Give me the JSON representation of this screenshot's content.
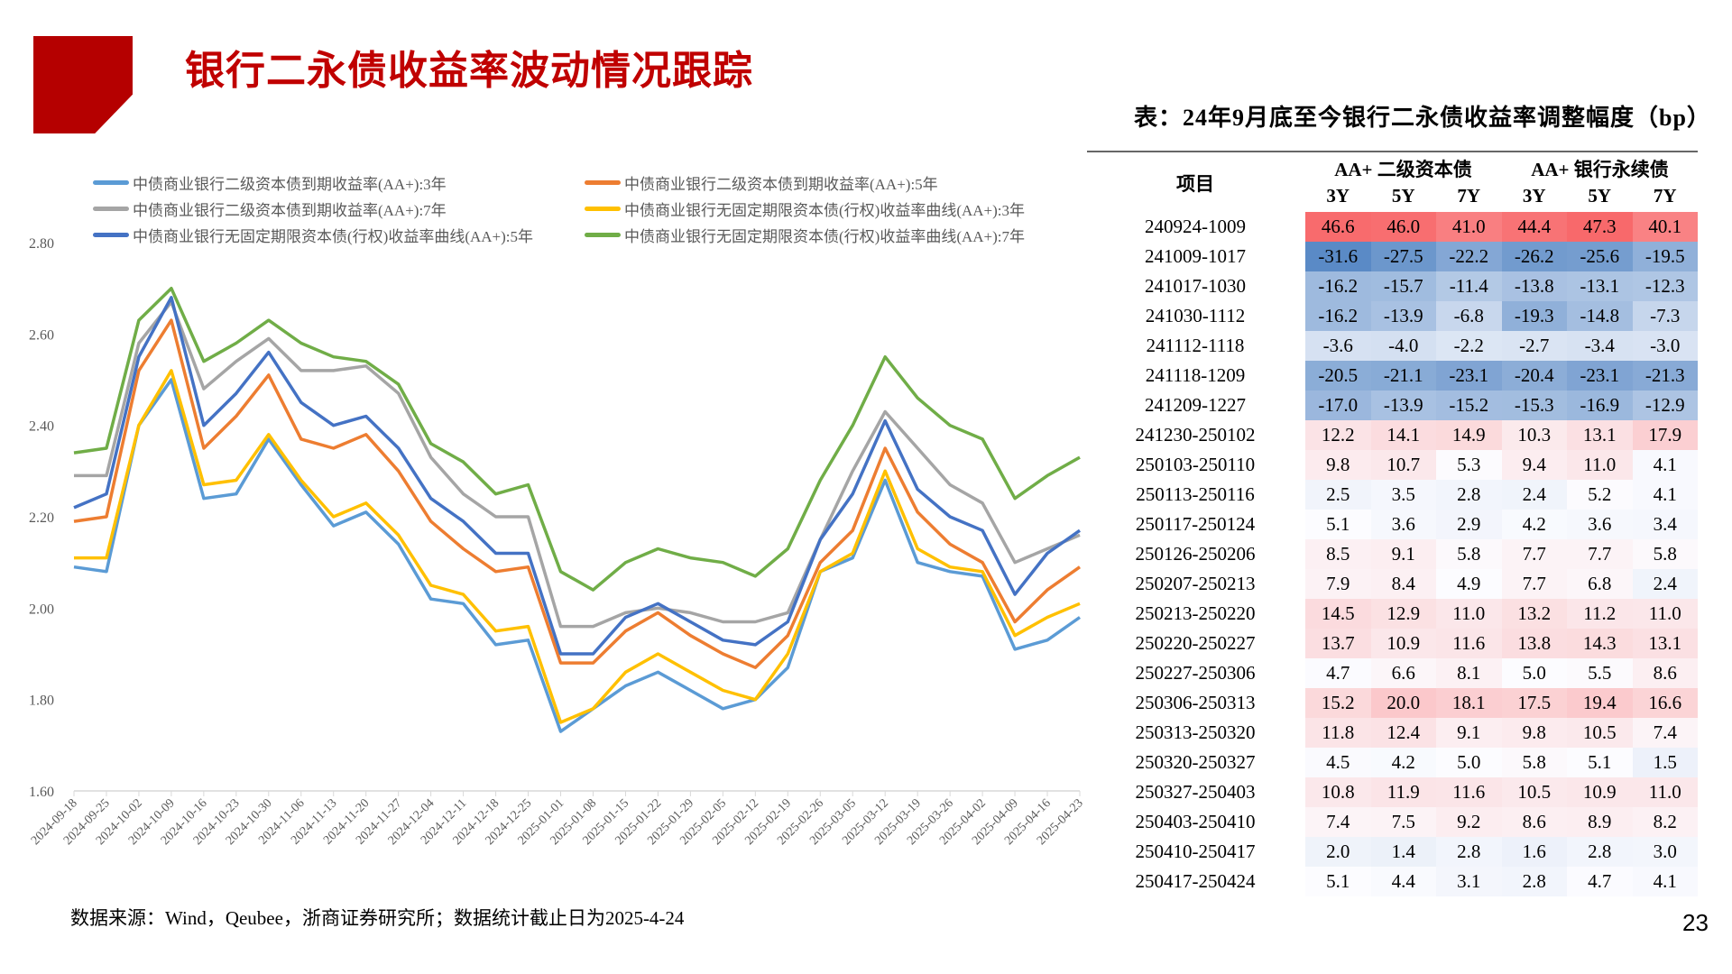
{
  "header": {
    "title": "银行二永债收益率波动情况跟踪"
  },
  "chart_data": {
    "type": "line",
    "title": "",
    "xlabel": "",
    "ylabel": "",
    "ylim": [
      1.6,
      2.8
    ],
    "yticks": [
      "1.60",
      "1.80",
      "2.00",
      "2.20",
      "2.40",
      "2.60",
      "2.80"
    ],
    "legend_position": "top",
    "x": [
      "2024-09-18",
      "2024-09-25",
      "2024-10-02",
      "2024-10-09",
      "2024-10-16",
      "2024-10-23",
      "2024-10-30",
      "2024-11-06",
      "2024-11-13",
      "2024-11-20",
      "2024-11-27",
      "2024-12-04",
      "2024-12-11",
      "2024-12-18",
      "2024-12-25",
      "2025-01-01",
      "2025-01-08",
      "2025-01-15",
      "2025-01-22",
      "2025-01-29",
      "2025-02-05",
      "2025-02-12",
      "2025-02-19",
      "2025-02-26",
      "2025-03-05",
      "2025-03-12",
      "2025-03-19",
      "2025-03-26",
      "2025-04-02",
      "2025-04-09",
      "2025-04-16",
      "2025-04-23"
    ],
    "series": [
      {
        "name": "中债商业银行二级资本债到期收益率(AA+):3年",
        "color": "#5b9bd5",
        "values": [
          2.09,
          2.08,
          2.4,
          2.5,
          2.24,
          2.25,
          2.37,
          2.27,
          2.18,
          2.21,
          2.14,
          2.02,
          2.01,
          1.92,
          1.93,
          1.73,
          1.78,
          1.83,
          1.86,
          1.82,
          1.78,
          1.8,
          1.87,
          2.08,
          2.11,
          2.28,
          2.1,
          2.08,
          2.07,
          1.91,
          1.93,
          1.98
        ]
      },
      {
        "name": "中债商业银行二级资本债到期收益率(AA+):5年",
        "color": "#ed7d31",
        "values": [
          2.19,
          2.2,
          2.52,
          2.63,
          2.35,
          2.42,
          2.51,
          2.37,
          2.35,
          2.38,
          2.3,
          2.19,
          2.13,
          2.08,
          2.09,
          1.88,
          1.88,
          1.95,
          1.99,
          1.94,
          1.9,
          1.87,
          1.94,
          2.1,
          2.17,
          2.35,
          2.21,
          2.14,
          2.1,
          1.97,
          2.04,
          2.09
        ]
      },
      {
        "name": "中债商业银行二级资本债到期收益率(AA+):7年",
        "color": "#a5a5a5",
        "values": [
          2.29,
          2.29,
          2.58,
          2.67,
          2.48,
          2.54,
          2.59,
          2.52,
          2.52,
          2.53,
          2.47,
          2.33,
          2.25,
          2.2,
          2.2,
          1.96,
          1.96,
          1.99,
          2.0,
          1.99,
          1.97,
          1.97,
          1.99,
          2.15,
          2.3,
          2.43,
          2.35,
          2.27,
          2.23,
          2.1,
          2.13,
          2.16
        ]
      },
      {
        "name": "中债商业银行无固定期限资本债(行权)收益率曲线(AA+):3年",
        "color": "#ffc000",
        "values": [
          2.11,
          2.11,
          2.4,
          2.52,
          2.27,
          2.28,
          2.38,
          2.28,
          2.2,
          2.23,
          2.16,
          2.05,
          2.03,
          1.95,
          1.96,
          1.75,
          1.78,
          1.86,
          1.9,
          1.86,
          1.82,
          1.8,
          1.9,
          2.08,
          2.12,
          2.3,
          2.13,
          2.09,
          2.08,
          1.94,
          1.98,
          2.01
        ]
      },
      {
        "name": "中债商业银行无固定期限资本债(行权)收益率曲线(AA+):5年",
        "color": "#4472c4",
        "values": [
          2.22,
          2.25,
          2.55,
          2.68,
          2.4,
          2.47,
          2.56,
          2.45,
          2.4,
          2.42,
          2.35,
          2.24,
          2.19,
          2.12,
          2.12,
          1.9,
          1.9,
          1.98,
          2.01,
          1.97,
          1.93,
          1.92,
          1.97,
          2.15,
          2.25,
          2.41,
          2.26,
          2.2,
          2.17,
          2.03,
          2.12,
          2.17
        ]
      },
      {
        "name": "中债商业银行无固定期限资本债(行权)收益率曲线(AA+):7年",
        "color": "#70ad47",
        "values": [
          2.34,
          2.35,
          2.63,
          2.7,
          2.54,
          2.58,
          2.63,
          2.58,
          2.55,
          2.54,
          2.49,
          2.36,
          2.32,
          2.25,
          2.27,
          2.08,
          2.04,
          2.1,
          2.13,
          2.11,
          2.1,
          2.07,
          2.13,
          2.28,
          2.4,
          2.55,
          2.46,
          2.4,
          2.37,
          2.24,
          2.29,
          2.33
        ]
      }
    ]
  },
  "table": {
    "title": "表：24年9月底至今银行二永债收益率调整幅度（bp）",
    "item_header": "项目",
    "group_headers": [
      "AA+ 二级资本债",
      "AA+ 银行永续债"
    ],
    "sub_headers": [
      "3Y",
      "5Y",
      "7Y",
      "3Y",
      "5Y",
      "7Y"
    ],
    "rows": [
      {
        "label": "240924-1009",
        "values": [
          "46.6",
          "46.0",
          "41.0",
          "44.4",
          "47.3",
          "40.1"
        ]
      },
      {
        "label": "241009-1017",
        "values": [
          "-31.6",
          "-27.5",
          "-22.2",
          "-26.2",
          "-25.6",
          "-19.5"
        ]
      },
      {
        "label": "241017-1030",
        "values": [
          "-16.2",
          "-15.7",
          "-11.4",
          "-13.8",
          "-13.1",
          "-12.3"
        ]
      },
      {
        "label": "241030-1112",
        "values": [
          "-16.2",
          "-13.9",
          "-6.8",
          "-19.3",
          "-14.8",
          "-7.3"
        ]
      },
      {
        "label": "241112-1118",
        "values": [
          "-3.6",
          "-4.0",
          "-2.2",
          "-2.7",
          "-3.4",
          "-3.0"
        ]
      },
      {
        "label": "241118-1209",
        "values": [
          "-20.5",
          "-21.1",
          "-23.1",
          "-20.4",
          "-23.1",
          "-21.3"
        ]
      },
      {
        "label": "241209-1227",
        "values": [
          "-17.0",
          "-13.9",
          "-15.2",
          "-15.3",
          "-16.9",
          "-12.9"
        ]
      },
      {
        "label": "241230-250102",
        "values": [
          "12.2",
          "14.1",
          "14.9",
          "10.3",
          "13.1",
          "17.9"
        ]
      },
      {
        "label": "250103-250110",
        "values": [
          "9.8",
          "10.7",
          "5.3",
          "9.4",
          "11.0",
          "4.1"
        ]
      },
      {
        "label": "250113-250116",
        "values": [
          "2.5",
          "3.5",
          "2.8",
          "2.4",
          "5.2",
          "4.1"
        ]
      },
      {
        "label": "250117-250124",
        "values": [
          "5.1",
          "3.6",
          "2.9",
          "4.2",
          "3.6",
          "3.4"
        ]
      },
      {
        "label": "250126-250206",
        "values": [
          "8.5",
          "9.1",
          "5.8",
          "7.7",
          "7.7",
          "5.8"
        ]
      },
      {
        "label": "250207-250213",
        "values": [
          "7.9",
          "8.4",
          "4.9",
          "7.7",
          "6.8",
          "2.4"
        ]
      },
      {
        "label": "250213-250220",
        "values": [
          "14.5",
          "12.9",
          "11.0",
          "13.2",
          "11.2",
          "11.0"
        ]
      },
      {
        "label": "250220-250227",
        "values": [
          "13.7",
          "10.9",
          "11.6",
          "13.8",
          "14.3",
          "13.1"
        ]
      },
      {
        "label": "250227-250306",
        "values": [
          "4.7",
          "6.6",
          "8.1",
          "5.0",
          "5.5",
          "8.6"
        ]
      },
      {
        "label": "250306-250313",
        "values": [
          "15.2",
          "20.0",
          "18.1",
          "17.5",
          "19.4",
          "16.6"
        ]
      },
      {
        "label": "250313-250320",
        "values": [
          "11.8",
          "12.4",
          "9.1",
          "9.8",
          "10.5",
          "7.4"
        ]
      },
      {
        "label": "250320-250327",
        "values": [
          "4.5",
          "4.2",
          "5.0",
          "5.8",
          "5.1",
          "1.5"
        ]
      },
      {
        "label": "250327-250403",
        "values": [
          "10.8",
          "11.9",
          "11.6",
          "10.5",
          "10.9",
          "11.0"
        ]
      },
      {
        "label": "250403-250410",
        "values": [
          "7.4",
          "7.5",
          "9.2",
          "8.6",
          "8.9",
          "8.2"
        ]
      },
      {
        "label": "250410-250417",
        "values": [
          "2.0",
          "1.4",
          "2.8",
          "1.6",
          "2.8",
          "3.0"
        ]
      },
      {
        "label": "250417-250424",
        "values": [
          "5.1",
          "4.4",
          "3.1",
          "2.8",
          "4.7",
          "4.1"
        ]
      }
    ],
    "scale_colors": {
      "low": "#5a8ac6",
      "mid": "#fcfcff",
      "high": "#f8696b"
    }
  },
  "footer": {
    "source": "数据来源：Wind，Qeubee，浙商证券研究所；数据统计截止日为2025-4-24",
    "page_number": "23"
  }
}
